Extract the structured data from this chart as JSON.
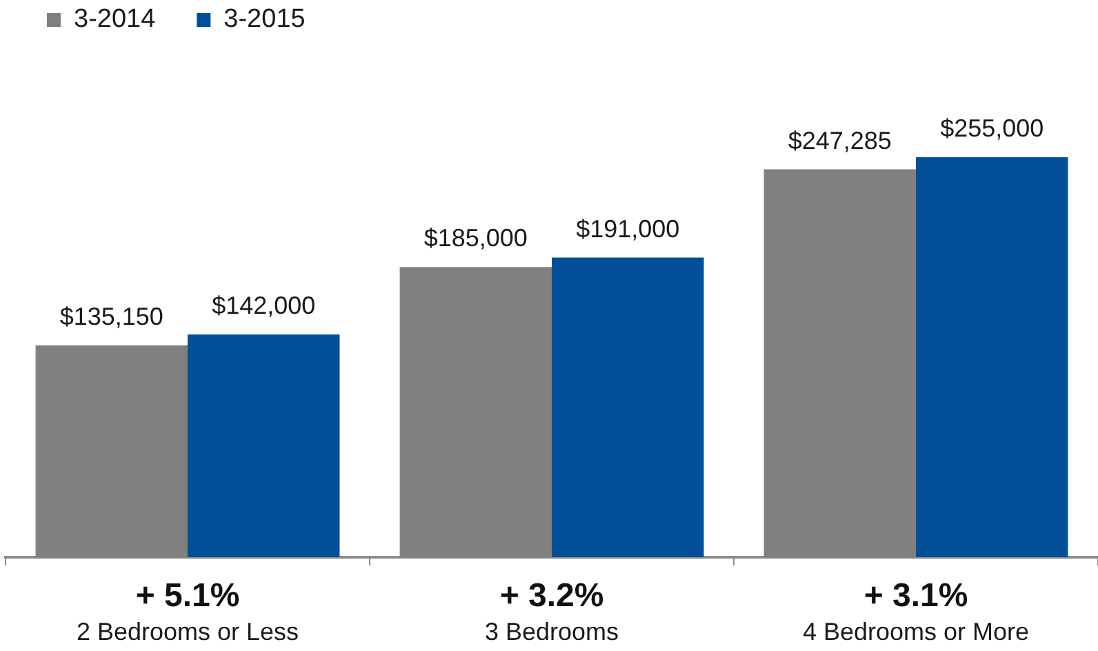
{
  "chart_data": {
    "type": "bar",
    "categories": [
      "2 Bedrooms or Less",
      "3 Bedrooms",
      "4 Bedrooms or More"
    ],
    "series": [
      {
        "name": "3-2014",
        "color": "#808080",
        "values": [
          135150,
          185000,
          247285
        ],
        "value_labels": [
          "$135,150",
          "$185,000",
          "$247,285"
        ]
      },
      {
        "name": "3-2015",
        "color": "#004f98",
        "values": [
          142000,
          191000,
          255000
        ],
        "value_labels": [
          "$142,000",
          "$191,000",
          "$255,000"
        ]
      }
    ],
    "annotations": [
      "+ 5.1%",
      "+ 3.2%",
      "+ 3.1%"
    ],
    "legend": "top left",
    "tick_labels": "x"
  }
}
